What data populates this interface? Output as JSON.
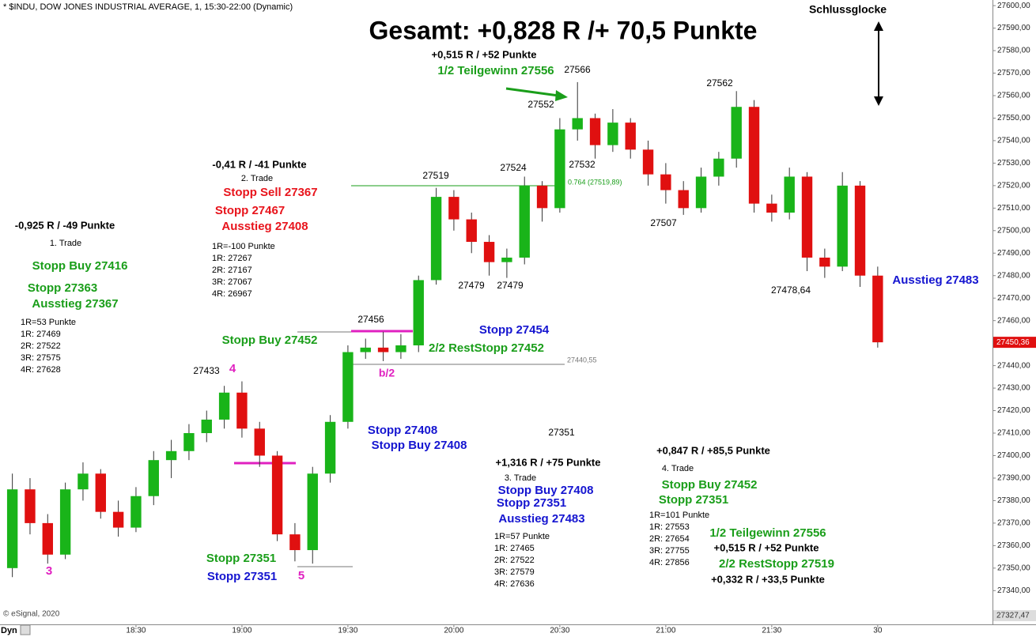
{
  "chart_data": {
    "type": "candlestick",
    "subtitle": "* $INDU, DOW JONES INDUSTRIAL AVERAGE, 1, 15:30-22:00 (Dynamic)",
    "title": "Gesamt: +0,828 R /+ 70,5 Punkte",
    "close_bell": "Schlussglocke",
    "copyright": "© eSignal, 2020",
    "mode": "Dyn",
    "last_price_label": "27450,36",
    "bottom_price_label": "27327,47",
    "up_color": "#19b419",
    "down_color": "#e01010",
    "grid": false,
    "xlim": [
      1071.5,
      1352.5
    ],
    "ylim": [
      27325,
      27602.5
    ],
    "xticks": [
      {
        "value": 1110,
        "label": "18:30"
      },
      {
        "value": 1140,
        "label": "19:00"
      },
      {
        "value": 1170,
        "label": "19:30"
      },
      {
        "value": 1200,
        "label": "20:00"
      },
      {
        "value": 1230,
        "label": "20:30"
      },
      {
        "value": 1260,
        "label": "21:00"
      },
      {
        "value": 1290,
        "label": "21:30"
      },
      {
        "value": 1320,
        "label": "30"
      }
    ],
    "yticks": [
      {
        "value": 27340,
        "label": "27340,00"
      },
      {
        "value": 27350,
        "label": "27350,00"
      },
      {
        "value": 27360,
        "label": "27360,00"
      },
      {
        "value": 27370,
        "label": "27370,00"
      },
      {
        "value": 27380,
        "label": "27380,00"
      },
      {
        "value": 27390,
        "label": "27390,00"
      },
      {
        "value": 27400,
        "label": "27400,00"
      },
      {
        "value": 27410,
        "label": "27410,00"
      },
      {
        "value": 27420,
        "label": "27420,00"
      },
      {
        "value": 27430,
        "label": "27430,00"
      },
      {
        "value": 27440,
        "label": "27440,00"
      },
      {
        "value": 27460,
        "label": "27460,00"
      },
      {
        "value": 27470,
        "label": "27470,00"
      },
      {
        "value": 27480,
        "label": "27480,00"
      },
      {
        "value": 27490,
        "label": "27490,00"
      },
      {
        "value": 27500,
        "label": "27500,00"
      },
      {
        "value": 27510,
        "label": "27510,00"
      },
      {
        "value": 27520,
        "label": "27520,00"
      },
      {
        "value": 27530,
        "label": "27530,00"
      },
      {
        "value": 27540,
        "label": "27540,00"
      },
      {
        "value": 27550,
        "label": "27550,00"
      },
      {
        "value": 27560,
        "label": "27560,00"
      },
      {
        "value": 27570,
        "label": "27570,00"
      },
      {
        "value": 27580,
        "label": "27580,00"
      },
      {
        "value": 27590,
        "label": "27590,00"
      },
      {
        "value": 27600,
        "label": "27600,00"
      }
    ],
    "x": [
      1075,
      1080,
      1085,
      1090,
      1095,
      1100,
      1105,
      1110,
      1115,
      1120,
      1125,
      1130,
      1135,
      1140,
      1145,
      1150,
      1155,
      1160,
      1165,
      1170,
      1175,
      1180,
      1185,
      1190,
      1195,
      1200,
      1205,
      1210,
      1215,
      1220,
      1225,
      1230,
      1235,
      1240,
      1245,
      1250,
      1255,
      1260,
      1265,
      1270,
      1275,
      1280,
      1285,
      1290,
      1295,
      1300,
      1305,
      1310,
      1315,
      1320
    ],
    "open": [
      27350,
      27385,
      27370,
      27356,
      27385,
      27392,
      27375,
      27368,
      27382,
      27398,
      27402,
      27410,
      27416,
      27428,
      27412,
      27400,
      27365,
      27358,
      27392,
      27415,
      27446,
      27448,
      27446,
      27449,
      27478,
      27515,
      27505,
      27495,
      27486,
      27488,
      27520,
      27510,
      27545,
      27550,
      27538,
      27548,
      27536,
      27525,
      27518,
      27510,
      27524,
      27532,
      27555,
      27512,
      27508,
      27524,
      27488,
      27484,
      27520,
      27480
    ],
    "high": [
      27392,
      27390,
      27374,
      27388,
      27397,
      27394,
      27380,
      27386,
      27402,
      27407,
      27414,
      27420,
      27431,
      27433,
      27415,
      27402,
      27370,
      27395,
      27418,
      27449,
      27452,
      27455,
      27454,
      27480,
      27519,
      27518,
      27508,
      27498,
      27492,
      27524,
      27522,
      27550,
      27566,
      27552,
      27554,
      27550,
      27540,
      27530,
      27522,
      27528,
      27535,
      27562,
      27558,
      27516,
      27528,
      27526,
      27492,
      27526,
      27522,
      27484
    ],
    "low": [
      27346,
      27365,
      27352,
      27354,
      27380,
      27372,
      27364,
      27366,
      27378,
      27390,
      27398,
      27406,
      27412,
      27408,
      27395,
      27362,
      27353,
      27352,
      27388,
      27412,
      27443,
      27442,
      27443,
      27446,
      27476,
      27500,
      27490,
      27480,
      27479,
      27485,
      27504,
      27508,
      27540,
      27532,
      27535,
      27532,
      27520,
      27512,
      27507,
      27508,
      27520,
      27528,
      27508,
      27504,
      27505,
      27482,
      27479,
      27482,
      27475,
      27448
    ],
    "close": [
      27385,
      27370,
      27356,
      27385,
      27392,
      27375,
      27368,
      27382,
      27398,
      27402,
      27410,
      27416,
      27428,
      27412,
      27400,
      27365,
      27358,
      27392,
      27415,
      27446,
      27448,
      27446,
      27449,
      27478,
      27515,
      27505,
      27495,
      27486,
      27488,
      27520,
      27510,
      27545,
      27550,
      27538,
      27548,
      27536,
      27525,
      27518,
      27510,
      27524,
      27532,
      27555,
      27512,
      27508,
      27524,
      27488,
      27484,
      27520,
      27480,
      27450.36
    ],
    "annotations": [
      {
        "text": "+0,515 R / +52 Punkte",
        "color": "#000000"
      },
      {
        "text": "1/2 Teilgewinn 27556",
        "color": "#1a9e1a"
      },
      {
        "text": "27566",
        "color": "#000000"
      },
      {
        "text": "27552",
        "color": "#000000"
      },
      {
        "text": "27562",
        "color": "#000000"
      },
      {
        "text": "27532",
        "color": "#000000"
      },
      {
        "text": "27524",
        "color": "#000000"
      },
      {
        "text": "27519",
        "color": "#000000"
      },
      {
        "text": "0.764 (27519,89)",
        "color": "#1a9e1a"
      },
      {
        "text": "-0,41 R / -41 Punkte",
        "color": "#000000"
      },
      {
        "text": "2. Trade",
        "color": "#000000"
      },
      {
        "text": "Stopp Sell 27367",
        "color": "#e8141c"
      },
      {
        "text": "Stopp 27467",
        "color": "#e8141c"
      },
      {
        "text": "Ausstieg 27408",
        "color": "#e8141c"
      },
      {
        "text": "1R=-100 Punkte",
        "color": "#000000"
      },
      {
        "text": "1R: 27267",
        "color": "#000000"
      },
      {
        "text": "2R: 27167",
        "color": "#000000"
      },
      {
        "text": "3R: 27067",
        "color": "#000000"
      },
      {
        "text": "4R: 26967",
        "color": "#000000"
      },
      {
        "text": "-0,925 R / -49 Punkte",
        "color": "#000000"
      },
      {
        "text": "1. Trade",
        "color": "#000000"
      },
      {
        "text": "Stopp Buy 27416",
        "color": "#1a9e1a"
      },
      {
        "text": "Stopp 27363",
        "color": "#1a9e1a"
      },
      {
        "text": "Ausstieg 27367",
        "color": "#1a9e1a"
      },
      {
        "text": "1R=53 Punkte",
        "color": "#000000"
      },
      {
        "text": "1R: 27469",
        "color": "#000000"
      },
      {
        "text": "2R: 27522",
        "color": "#000000"
      },
      {
        "text": "3R: 27575",
        "color": "#000000"
      },
      {
        "text": "4R: 27628",
        "color": "#000000"
      },
      {
        "text": "27433",
        "color": "#000000"
      },
      {
        "text": "4",
        "color": "#e020c0"
      },
      {
        "text": "3",
        "color": "#e020c0"
      },
      {
        "text": "5",
        "color": "#e020c0"
      },
      {
        "text": "Stopp Buy 27452",
        "color": "#1a9e1a"
      },
      {
        "text": "27456",
        "color": "#000000"
      },
      {
        "text": "b/2",
        "color": "#e020c0"
      },
      {
        "text": "Stopp 27454",
        "color": "#1515d0"
      },
      {
        "text": "2/2 RestStopp 27452",
        "color": "#1a9e1a"
      },
      {
        "text": "27440,55",
        "color": "#777777"
      },
      {
        "text": "27507",
        "color": "#000000"
      },
      {
        "text": "27479",
        "color": "#000000"
      },
      {
        "text": "27479",
        "color": "#000000"
      },
      {
        "text": "27478,64",
        "color": "#000000"
      },
      {
        "text": "Ausstieg 27483",
        "color": "#1515d0"
      },
      {
        "text": "27351",
        "color": "#000000"
      },
      {
        "text": "Stopp 27408",
        "color": "#1515d0"
      },
      {
        "text": "Stopp Buy 27408",
        "color": "#1515d0"
      },
      {
        "text": "+1,316 R / +75 Punkte",
        "color": "#000000"
      },
      {
        "text": "3. Trade",
        "color": "#000000"
      },
      {
        "text": "Stopp Buy 27408",
        "color": "#1515d0"
      },
      {
        "text": "Stopp 27351",
        "color": "#1515d0"
      },
      {
        "text": "Ausstieg 27483",
        "color": "#1515d0"
      },
      {
        "text": "1R=57 Punkte",
        "color": "#000000"
      },
      {
        "text": "1R: 27465",
        "color": "#000000"
      },
      {
        "text": "2R: 27522",
        "color": "#000000"
      },
      {
        "text": "3R: 27579",
        "color": "#000000"
      },
      {
        "text": "4R: 27636",
        "color": "#000000"
      },
      {
        "text": "Stopp 27351",
        "color": "#1a9e1a"
      },
      {
        "text": "Stopp 27351",
        "color": "#1515d0"
      },
      {
        "text": "+0,847 R / +85,5 Punkte",
        "color": "#000000"
      },
      {
        "text": "4. Trade",
        "color": "#000000"
      },
      {
        "text": "Stopp Buy 27452",
        "color": "#1a9e1a"
      },
      {
        "text": "Stopp 27351",
        "color": "#1a9e1a"
      },
      {
        "text": "1R=101 Punkte",
        "color": "#000000"
      },
      {
        "text": "1R: 27553",
        "color": "#000000"
      },
      {
        "text": "2R: 27654",
        "color": "#000000"
      },
      {
        "text": "3R: 27755",
        "color": "#000000"
      },
      {
        "text": "4R: 27856",
        "color": "#000000"
      },
      {
        "text": "1/2 Teilgewinn 27556",
        "color": "#1a9e1a"
      },
      {
        "text": "+0,515 R / +52 Punkte",
        "color": "#000000"
      },
      {
        "text": "2/2 RestStopp 27519",
        "color": "#1a9e1a"
      },
      {
        "text": "+0,332 R / +33,5 Punkte",
        "color": "#000000"
      }
    ]
  }
}
